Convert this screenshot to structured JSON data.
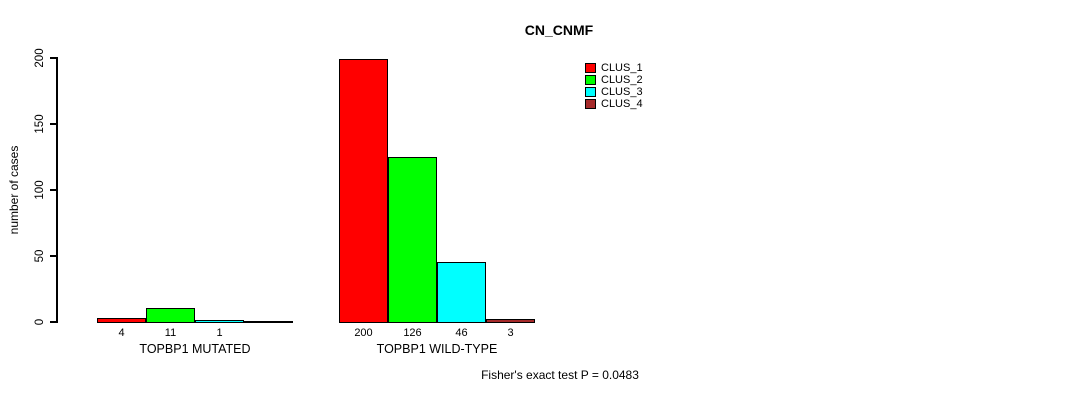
{
  "chart_data": {
    "type": "bar",
    "title": "CN_CNMF",
    "ylabel": "number of cases",
    "ylim": [
      0,
      200
    ],
    "yticks": [
      0,
      50,
      100,
      150,
      200
    ],
    "grid": false,
    "legend_position": "top-right",
    "categories": [
      "TOPBP1 MUTATED",
      "TOPBP1 WILD-TYPE"
    ],
    "series": [
      {
        "name": "CLUS_1",
        "color": "#ff0000",
        "values": [
          4,
          200
        ]
      },
      {
        "name": "CLUS_2",
        "color": "#00ff00",
        "values": [
          11,
          126
        ]
      },
      {
        "name": "CLUS_3",
        "color": "#00ffff",
        "values": [
          1,
          46
        ]
      },
      {
        "name": "CLUS_4",
        "color": "#a52a2a",
        "values": [
          0,
          3
        ]
      }
    ],
    "bar_value_labels": [
      [
        "4",
        "11",
        "1",
        ""
      ],
      [
        "200",
        "126",
        "46",
        "3"
      ]
    ],
    "annotation": "Fisher's exact test P = 0.0483"
  }
}
